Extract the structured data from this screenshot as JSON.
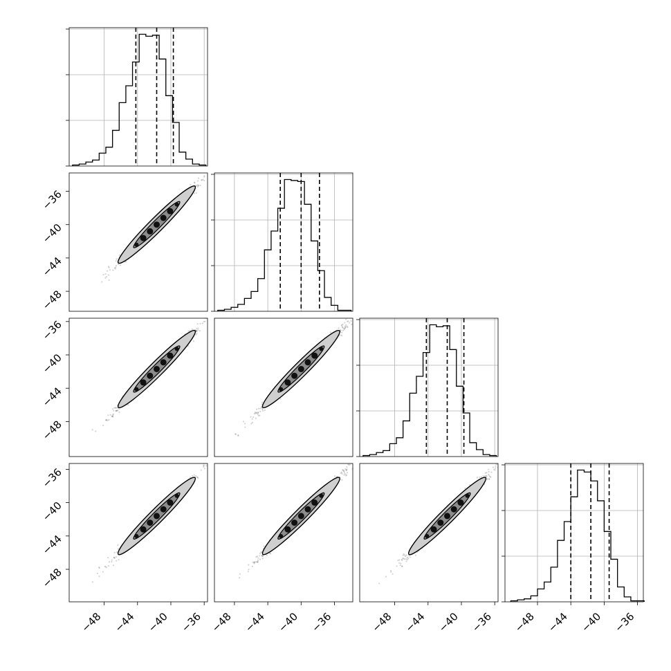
{
  "chart_data": {
    "type": "corner",
    "title": "",
    "grid": true,
    "n_params": 4,
    "tick_values": [
      -48,
      -44,
      -40,
      -36
    ],
    "tick_labels": [
      "−48",
      "−44",
      "−40",
      "−36"
    ],
    "style": {
      "line_color": "#000000",
      "grid_color": "#b0b0b0",
      "quantile_line": "dashed",
      "contour_fill_outer": "#cfcfcf",
      "contour_fill_inner": "#8c8c8c",
      "scatter_color": "#555555"
    },
    "marginals": [
      {
        "param_index": 0,
        "x_range": [
          -52.2,
          -35.6
        ],
        "bin_edges": [
          -51.8,
          -51.0,
          -50.2,
          -49.4,
          -48.6,
          -47.8,
          -47.0,
          -46.2,
          -45.4,
          -44.6,
          -43.8,
          -43.0,
          -42.2,
          -41.4,
          -40.6,
          -39.8,
          -39.0,
          -38.2,
          -37.4,
          -36.6,
          -35.8
        ],
        "counts": [
          1,
          2,
          4,
          6,
          13,
          19,
          36,
          64,
          81,
          105,
          133,
          131,
          132,
          108,
          71,
          44,
          14,
          7,
          2,
          1
        ],
        "quantiles": [
          -44.2,
          -41.7,
          -39.7
        ]
      },
      {
        "param_index": 1,
        "x_range": [
          -50.4,
          -33.8
        ],
        "bin_edges": [
          -50.0,
          -49.2,
          -48.4,
          -47.6,
          -46.8,
          -46.0,
          -45.2,
          -44.4,
          -43.6,
          -42.8,
          -42.0,
          -41.2,
          -40.4,
          -39.6,
          -38.8,
          -38.0,
          -37.2,
          -36.4,
          -35.6,
          -34.8,
          -34.0
        ],
        "counts": [
          1,
          2,
          4,
          7,
          13,
          20,
          33,
          62,
          81,
          104,
          133,
          132,
          131,
          108,
          71,
          41,
          14,
          6,
          1,
          1
        ],
        "quantiles": [
          -42.5,
          -40.0,
          -37.8
        ]
      },
      {
        "param_index": 2,
        "x_range": [
          -52.2,
          -35.6
        ],
        "bin_edges": [
          -51.8,
          -51.0,
          -50.2,
          -49.4,
          -48.6,
          -47.8,
          -47.0,
          -46.2,
          -45.4,
          -44.6,
          -43.8,
          -43.0,
          -42.2,
          -41.4,
          -40.6,
          -39.8,
          -39.0,
          -38.2,
          -37.4,
          -36.6,
          -35.8
        ],
        "counts": [
          1,
          2,
          4,
          6,
          13,
          19,
          36,
          64,
          81,
          105,
          133,
          131,
          132,
          108,
          71,
          44,
          14,
          7,
          2,
          1
        ],
        "quantiles": [
          -44.2,
          -41.7,
          -39.7
        ]
      },
      {
        "param_index": 3,
        "x_range": [
          -51.9,
          -35.3
        ],
        "bin_edges": [
          -51.2,
          -50.4,
          -49.6,
          -48.8,
          -48.0,
          -47.2,
          -46.4,
          -45.6,
          -44.8,
          -44.0,
          -43.2,
          -42.4,
          -41.6,
          -40.8,
          -40.0,
          -39.2,
          -38.4,
          -37.6,
          -36.8,
          -36.0,
          -35.2
        ],
        "counts": [
          1,
          2,
          3,
          6,
          13,
          20,
          35,
          62,
          81,
          106,
          133,
          131,
          122,
          102,
          71,
          43,
          15,
          5,
          1,
          1
        ],
        "quantiles": [
          -44.0,
          -41.6,
          -39.4
        ]
      }
    ],
    "pairs": [
      {
        "x_param": 0,
        "y_param": 1,
        "x_range": [
          -52.2,
          -35.6
        ],
        "y_range": [
          -50.4,
          -33.8
        ],
        "mean": [
          -41.7,
          -40.0
        ],
        "x_sd": 2.3
      },
      {
        "x_param": 0,
        "y_param": 2,
        "x_range": [
          -52.2,
          -35.6
        ],
        "y_range": [
          -52.2,
          -35.6
        ],
        "mean": [
          -41.7,
          -41.7
        ],
        "x_sd": 2.3
      },
      {
        "x_param": 1,
        "y_param": 2,
        "x_range": [
          -50.4,
          -33.8
        ],
        "y_range": [
          -52.2,
          -35.6
        ],
        "mean": [
          -40.0,
          -41.7
        ],
        "x_sd": 2.3
      },
      {
        "x_param": 0,
        "y_param": 3,
        "x_range": [
          -52.2,
          -35.6
        ],
        "y_range": [
          -51.9,
          -35.3
        ],
        "mean": [
          -41.7,
          -41.6
        ],
        "x_sd": 2.3
      },
      {
        "x_param": 1,
        "y_param": 3,
        "x_range": [
          -50.4,
          -33.8
        ],
        "y_range": [
          -51.9,
          -35.3
        ],
        "mean": [
          -40.0,
          -41.6
        ],
        "x_sd": 2.3
      },
      {
        "x_param": 2,
        "y_param": 3,
        "x_range": [
          -52.2,
          -35.6
        ],
        "y_range": [
          -51.9,
          -35.3
        ],
        "mean": [
          -41.7,
          -41.6
        ],
        "x_sd": 2.3
      }
    ]
  }
}
